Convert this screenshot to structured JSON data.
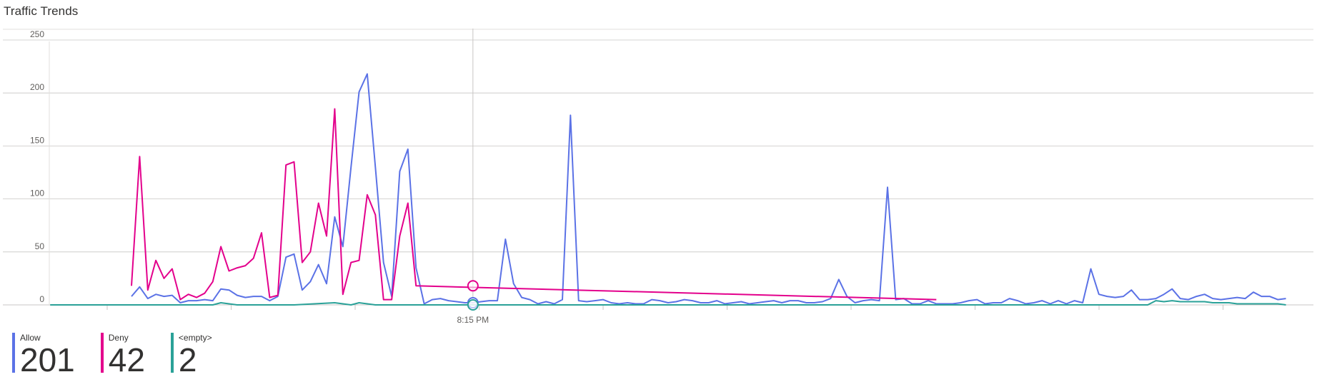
{
  "chart_data": {
    "type": "line",
    "title": "Traffic Trends",
    "ylim": [
      0,
      250
    ],
    "yticks": [
      0,
      50,
      100,
      150,
      200,
      250
    ],
    "xlabel_ticks": [
      {
        "label": "8:15 PM",
        "x": 52
      }
    ],
    "x_count": 146,
    "crosshair_x": 52,
    "grid": true,
    "legend": "bottom-left",
    "series": [
      {
        "name": "Allow",
        "color": "#5b72e6",
        "total": "201",
        "points": [
          [
            10,
            8
          ],
          [
            11,
            17
          ],
          [
            12,
            6
          ],
          [
            13,
            10
          ],
          [
            14,
            8
          ],
          [
            15,
            9
          ],
          [
            16,
            2
          ],
          [
            17,
            4
          ],
          [
            18,
            4
          ],
          [
            19,
            5
          ],
          [
            20,
            4
          ],
          [
            21,
            15
          ],
          [
            22,
            14
          ],
          [
            23,
            9
          ],
          [
            24,
            7
          ],
          [
            25,
            8
          ],
          [
            26,
            8
          ],
          [
            27,
            4
          ],
          [
            28,
            8
          ],
          [
            29,
            45
          ],
          [
            30,
            48
          ],
          [
            31,
            14
          ],
          [
            32,
            22
          ],
          [
            33,
            38
          ],
          [
            34,
            20
          ],
          [
            35,
            83
          ],
          [
            36,
            55
          ],
          [
            37,
            130
          ],
          [
            38,
            201
          ],
          [
            39,
            218
          ],
          [
            40,
            130
          ],
          [
            41,
            40
          ],
          [
            42,
            8
          ],
          [
            43,
            126
          ],
          [
            44,
            147
          ],
          [
            45,
            35
          ],
          [
            46,
            1
          ],
          [
            47,
            5
          ],
          [
            48,
            6
          ],
          [
            49,
            4
          ],
          [
            50,
            3
          ],
          [
            51,
            2
          ],
          [
            52,
            2
          ],
          [
            53,
            3
          ],
          [
            54,
            4
          ],
          [
            55,
            4
          ],
          [
            56,
            62
          ],
          [
            57,
            20
          ],
          [
            58,
            7
          ],
          [
            59,
            5
          ],
          [
            60,
            1
          ],
          [
            61,
            3
          ],
          [
            62,
            1
          ],
          [
            63,
            5
          ],
          [
            64,
            179
          ],
          [
            65,
            4
          ],
          [
            66,
            3
          ],
          [
            67,
            4
          ],
          [
            68,
            5
          ],
          [
            69,
            2
          ],
          [
            70,
            1
          ],
          [
            71,
            2
          ],
          [
            72,
            1
          ],
          [
            73,
            1
          ],
          [
            74,
            5
          ],
          [
            75,
            4
          ],
          [
            76,
            2
          ],
          [
            77,
            3
          ],
          [
            78,
            5
          ],
          [
            79,
            4
          ],
          [
            80,
            2
          ],
          [
            81,
            2
          ],
          [
            82,
            4
          ],
          [
            83,
            1
          ],
          [
            84,
            2
          ],
          [
            85,
            3
          ],
          [
            86,
            1
          ],
          [
            87,
            2
          ],
          [
            88,
            3
          ],
          [
            89,
            4
          ],
          [
            90,
            2
          ],
          [
            91,
            4
          ],
          [
            92,
            4
          ],
          [
            93,
            2
          ],
          [
            94,
            2
          ],
          [
            95,
            3
          ],
          [
            96,
            6
          ],
          [
            97,
            24
          ],
          [
            98,
            8
          ],
          [
            99,
            2
          ],
          [
            100,
            4
          ],
          [
            101,
            5
          ],
          [
            102,
            4
          ],
          [
            103,
            111
          ],
          [
            104,
            5
          ],
          [
            105,
            6
          ],
          [
            106,
            1
          ],
          [
            107,
            1
          ],
          [
            108,
            4
          ],
          [
            109,
            1
          ],
          [
            110,
            1
          ],
          [
            111,
            1
          ],
          [
            112,
            2
          ],
          [
            113,
            4
          ],
          [
            114,
            5
          ],
          [
            115,
            1
          ],
          [
            116,
            2
          ],
          [
            117,
            2
          ],
          [
            118,
            6
          ],
          [
            119,
            4
          ],
          [
            120,
            1
          ],
          [
            121,
            2
          ],
          [
            122,
            4
          ],
          [
            123,
            1
          ],
          [
            124,
            4
          ],
          [
            125,
            1
          ],
          [
            126,
            4
          ],
          [
            127,
            2
          ],
          [
            128,
            34
          ],
          [
            129,
            10
          ],
          [
            130,
            8
          ],
          [
            131,
            7
          ],
          [
            132,
            8
          ],
          [
            133,
            14
          ],
          [
            134,
            5
          ],
          [
            135,
            5
          ],
          [
            136,
            6
          ],
          [
            137,
            10
          ],
          [
            138,
            15
          ],
          [
            139,
            6
          ],
          [
            140,
            5
          ],
          [
            141,
            8
          ],
          [
            142,
            10
          ],
          [
            143,
            6
          ],
          [
            144,
            5
          ],
          [
            145,
            6
          ],
          [
            146,
            7
          ],
          [
            147,
            6
          ],
          [
            148,
            12
          ],
          [
            149,
            8
          ],
          [
            150,
            8
          ],
          [
            151,
            5
          ],
          [
            152,
            6
          ]
        ]
      },
      {
        "name": "Deny",
        "color": "#e3008c",
        "total": "42",
        "points": [
          [
            10,
            18
          ],
          [
            11,
            140
          ],
          [
            12,
            14
          ],
          [
            13,
            42
          ],
          [
            14,
            25
          ],
          [
            15,
            34
          ],
          [
            16,
            5
          ],
          [
            17,
            10
          ],
          [
            18,
            7
          ],
          [
            19,
            11
          ],
          [
            20,
            22
          ],
          [
            21,
            55
          ],
          [
            22,
            32
          ],
          [
            23,
            35
          ],
          [
            24,
            37
          ],
          [
            25,
            44
          ],
          [
            26,
            68
          ],
          [
            27,
            7
          ],
          [
            28,
            9
          ],
          [
            29,
            132
          ],
          [
            30,
            135
          ],
          [
            31,
            40
          ],
          [
            32,
            50
          ],
          [
            33,
            96
          ],
          [
            34,
            65
          ],
          [
            35,
            185
          ],
          [
            36,
            10
          ],
          [
            37,
            40
          ],
          [
            38,
            42
          ],
          [
            39,
            104
          ],
          [
            40,
            85
          ],
          [
            41,
            5
          ],
          [
            42,
            5
          ],
          [
            43,
            65
          ],
          [
            44,
            96
          ],
          [
            45,
            18
          ],
          [
            109,
            5
          ]
        ]
      },
      {
        "name": "<empty>",
        "color": "#2aa198",
        "total": "2",
        "points": [
          [
            0,
            0
          ],
          [
            20,
            0
          ],
          [
            21,
            2
          ],
          [
            22,
            1
          ],
          [
            23,
            0
          ],
          [
            30,
            0
          ],
          [
            35,
            2
          ],
          [
            36,
            1
          ],
          [
            37,
            0
          ],
          [
            38,
            2
          ],
          [
            39,
            1
          ],
          [
            40,
            0
          ],
          [
            100,
            0
          ],
          [
            135,
            0
          ],
          [
            136,
            4
          ],
          [
            137,
            3
          ],
          [
            138,
            4
          ],
          [
            139,
            3
          ],
          [
            140,
            3
          ],
          [
            141,
            3
          ],
          [
            142,
            3
          ],
          [
            143,
            2
          ],
          [
            144,
            2
          ],
          [
            145,
            2
          ],
          [
            146,
            1
          ],
          [
            147,
            1
          ],
          [
            148,
            1
          ],
          [
            149,
            1
          ],
          [
            150,
            1
          ],
          [
            151,
            1
          ],
          [
            152,
            0
          ]
        ]
      }
    ]
  }
}
